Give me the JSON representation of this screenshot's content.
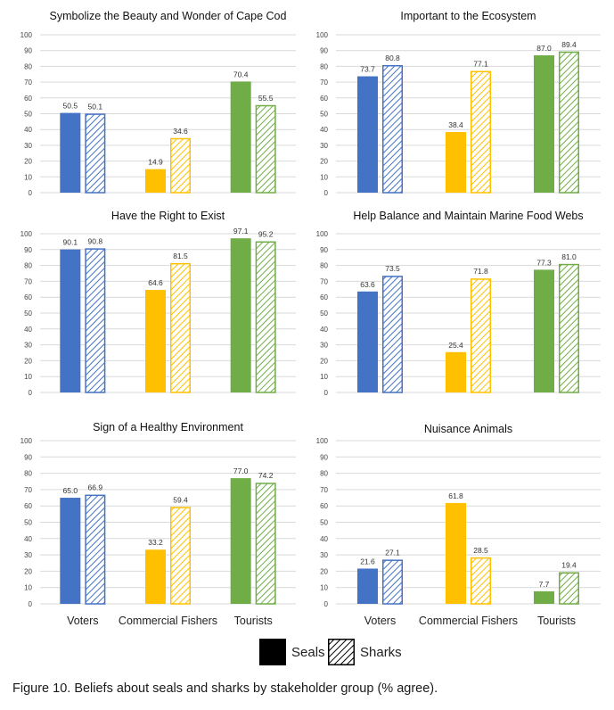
{
  "colors": {
    "voters": "#4472C4",
    "fishers": "#FFC000",
    "tourists": "#70AD47",
    "legend": "#000000"
  },
  "chart_data": [
    {
      "type": "bar",
      "title": "Symbolize the Beauty and Wonder of Cape Cod",
      "categories": [
        "Voters",
        "Commercial Fishers",
        "Tourists"
      ],
      "series": [
        {
          "name": "Seals",
          "values": [
            50.5,
            14.9,
            70.4
          ]
        },
        {
          "name": "Sharks",
          "values": [
            50.1,
            34.6,
            55.5
          ]
        }
      ],
      "ylim": [
        0,
        100
      ],
      "yticks": [
        "0",
        "10",
        "20",
        "30",
        "40",
        "50",
        "60",
        "70",
        "80",
        "90",
        "100"
      ],
      "show_xlabels": false
    },
    {
      "type": "bar",
      "title": "Important to the Ecosystem",
      "categories": [
        "Voters",
        "Commercial Fishers",
        "Tourists"
      ],
      "series": [
        {
          "name": "Seals",
          "values": [
            73.7,
            38.4,
            87.0
          ]
        },
        {
          "name": "Sharks",
          "values": [
            80.8,
            77.1,
            89.4
          ]
        }
      ],
      "ylim": [
        0,
        100
      ],
      "yticks": [
        "0",
        "10",
        "20",
        "30",
        "40",
        "50",
        "60",
        "70",
        "80",
        "90",
        "100"
      ],
      "show_xlabels": false
    },
    {
      "type": "bar",
      "title": "Have the Right to Exist",
      "categories": [
        "Voters",
        "Commercial Fishers",
        "Tourists"
      ],
      "series": [
        {
          "name": "Seals",
          "values": [
            90.1,
            64.6,
            97.1
          ]
        },
        {
          "name": "Sharks",
          "values": [
            90.8,
            81.5,
            95.2
          ]
        }
      ],
      "ylim": [
        0,
        100
      ],
      "yticks": [
        "0",
        "10",
        "20",
        "30",
        "40",
        "50",
        "60",
        "70",
        "80",
        "90",
        "100"
      ],
      "show_xlabels": false
    },
    {
      "type": "bar",
      "title": "Help Balance and Maintain Marine Food Webs",
      "categories": [
        "Voters",
        "Commercial Fishers",
        "Tourists"
      ],
      "series": [
        {
          "name": "Seals",
          "values": [
            63.6,
            25.4,
            77.3
          ]
        },
        {
          "name": "Sharks",
          "values": [
            73.5,
            71.8,
            81.0
          ]
        }
      ],
      "ylim": [
        0,
        100
      ],
      "yticks": [
        "0",
        "10",
        "20",
        "30",
        "40",
        "50",
        "60",
        "70",
        "80",
        "90",
        "100"
      ],
      "show_xlabels": false
    },
    {
      "type": "bar",
      "title": "Sign of a Healthy Environment",
      "categories": [
        "Voters",
        "Commercial Fishers",
        "Tourists"
      ],
      "series": [
        {
          "name": "Seals",
          "values": [
            65.0,
            33.2,
            77.0
          ]
        },
        {
          "name": "Sharks",
          "values": [
            66.9,
            59.4,
            74.2
          ]
        }
      ],
      "ylim": [
        0,
        100
      ],
      "yticks": [
        "0",
        "10",
        "20",
        "30",
        "40",
        "50",
        "60",
        "70",
        "80",
        "90",
        "100"
      ],
      "show_xlabels": true
    },
    {
      "type": "bar",
      "title": "Nuisance Animals",
      "categories": [
        "Voters",
        "Commercial Fishers",
        "Tourists"
      ],
      "series": [
        {
          "name": "Seals",
          "values": [
            21.6,
            61.8,
            7.7
          ]
        },
        {
          "name": "Sharks",
          "values": [
            27.1,
            28.5,
            19.4
          ]
        }
      ],
      "ylim": [
        0,
        100
      ],
      "yticks": [
        "0",
        "10",
        "20",
        "30",
        "40",
        "50",
        "60",
        "70",
        "80",
        "90",
        "100"
      ],
      "show_xlabels": true
    }
  ],
  "legend": {
    "seals_label": "Seals",
    "sharks_label": "Sharks"
  },
  "caption": "Figure 10. Beliefs about seals and sharks by stakeholder group (% agree)."
}
